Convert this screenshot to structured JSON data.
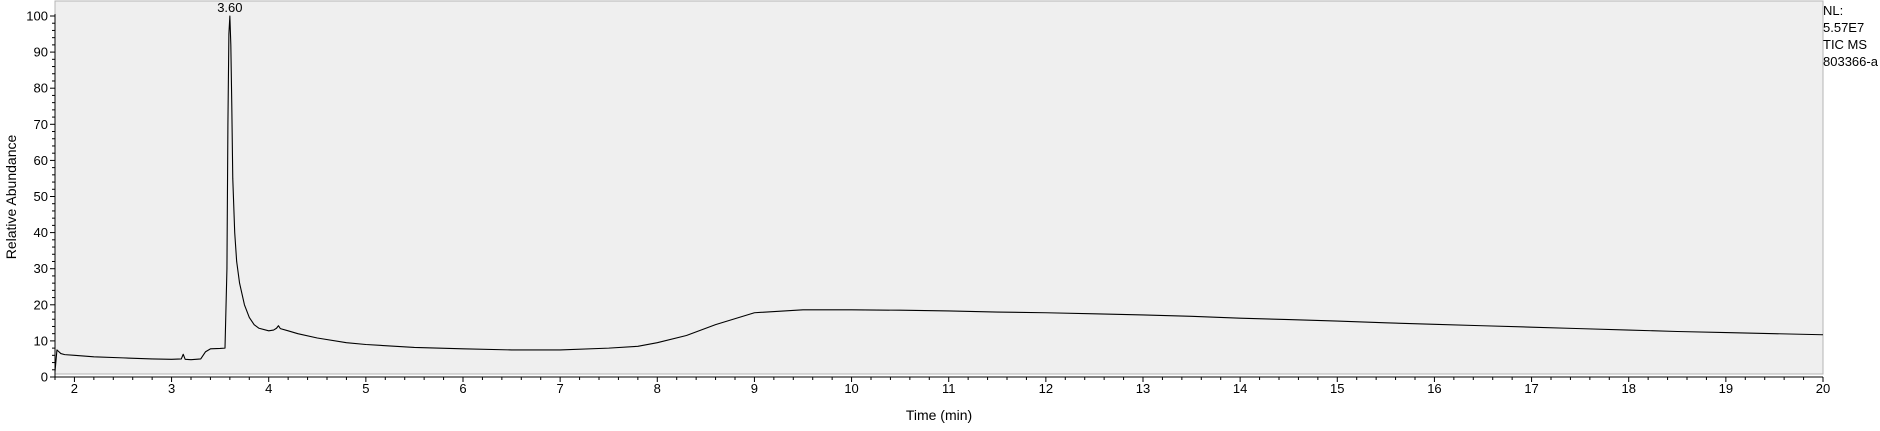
{
  "chart_data": {
    "type": "line",
    "title": "",
    "xlabel": "Time (min)",
    "ylabel": "Relative Abundance",
    "xlim": [
      1.8,
      20
    ],
    "ylim": [
      0,
      100
    ],
    "xticks": [
      "2",
      "3",
      "4",
      "5",
      "6",
      "7",
      "8",
      "9",
      "10",
      "11",
      "12",
      "13",
      "14",
      "15",
      "16",
      "17",
      "18",
      "19",
      "20"
    ],
    "yticks": [
      "0",
      "10",
      "20",
      "30",
      "40",
      "50",
      "60",
      "70",
      "80",
      "90",
      "100"
    ],
    "grid": false,
    "background": "#efefef",
    "line_color": "#000000",
    "peak_labels": [
      {
        "x": 3.6,
        "y": 100,
        "label": "3.60"
      }
    ],
    "info": [
      "NL:",
      "5.57E7",
      "TIC  MS",
      "803366-a"
    ],
    "series": [
      {
        "x": [
          1.8,
          1.82,
          1.84,
          1.86,
          1.9,
          2.0,
          2.2,
          2.5,
          2.8,
          3.0,
          3.1,
          3.12,
          3.14,
          3.2,
          3.3,
          3.35,
          3.4,
          3.5,
          3.55,
          3.57,
          3.58,
          3.59,
          3.6,
          3.61,
          3.62,
          3.63,
          3.65,
          3.67,
          3.7,
          3.75,
          3.8,
          3.85,
          3.9,
          4.0,
          4.05,
          4.08,
          4.1,
          4.12,
          4.2,
          4.3,
          4.5,
          4.8,
          5.0,
          5.5,
          6.0,
          6.5,
          7.0,
          7.5,
          7.8,
          8.0,
          8.3,
          8.6,
          9.0,
          9.5,
          10.0,
          10.5,
          11.0,
          11.5,
          12.0,
          12.5,
          13.0,
          13.5,
          14.0,
          14.5,
          15.0,
          15.5,
          16.0,
          16.5,
          17.0,
          17.5,
          18.0,
          18.5,
          19.0,
          19.5,
          20.0
        ],
        "y": [
          1.5,
          7.5,
          7.0,
          6.5,
          6.2,
          6.0,
          5.6,
          5.3,
          5.0,
          4.9,
          5.0,
          6.3,
          4.9,
          4.8,
          5.0,
          7.0,
          7.8,
          7.9,
          8.0,
          30.0,
          70.0,
          95.0,
          100.0,
          92.0,
          75.0,
          55.0,
          40.0,
          32.0,
          26.0,
          20.0,
          16.5,
          14.5,
          13.5,
          12.8,
          13.0,
          13.5,
          14.2,
          13.4,
          12.8,
          12.0,
          10.8,
          9.5,
          9.0,
          8.2,
          7.8,
          7.5,
          7.5,
          8.0,
          8.5,
          9.5,
          11.5,
          14.5,
          17.8,
          18.6,
          18.6,
          18.5,
          18.3,
          18.0,
          17.8,
          17.5,
          17.2,
          16.8,
          16.3,
          15.9,
          15.5,
          15.0,
          14.6,
          14.2,
          13.8,
          13.4,
          13.0,
          12.6,
          12.3,
          12.0,
          11.7
        ]
      }
    ]
  }
}
